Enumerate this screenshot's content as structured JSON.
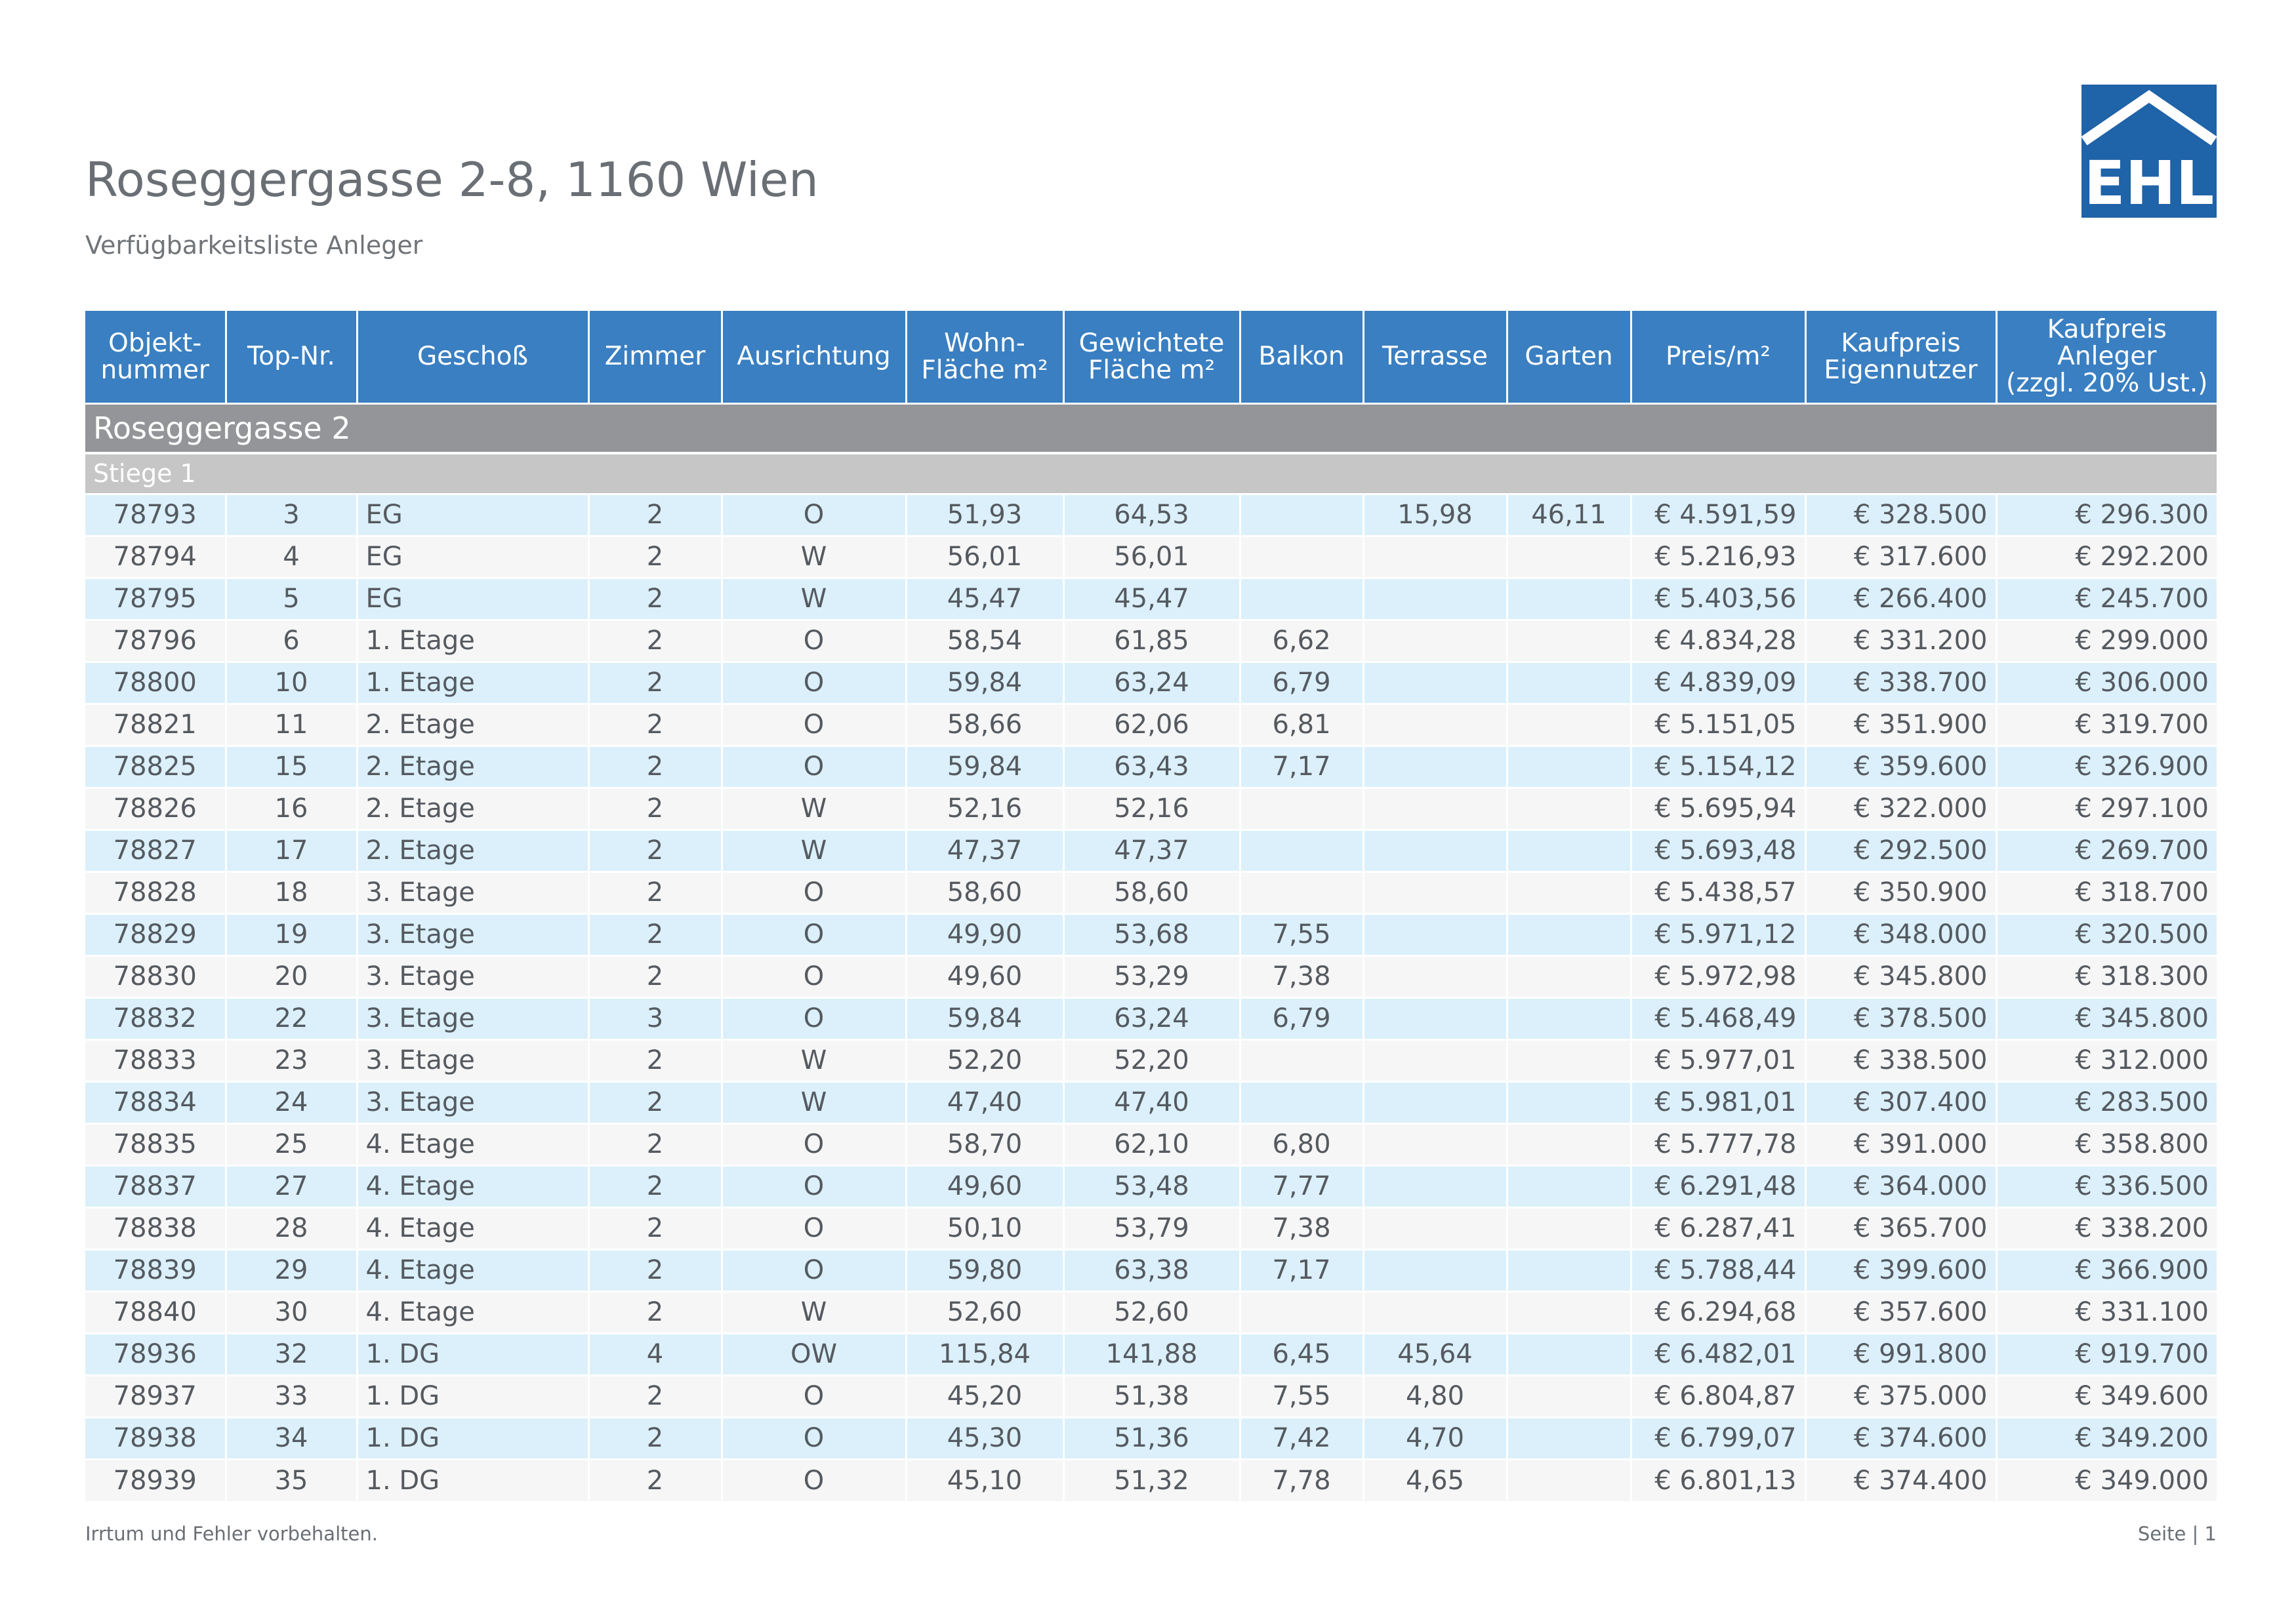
{
  "header": {
    "title": "Roseggergasse 2-8, 1160 Wien",
    "subtitle": "Verfügbarkeitsliste Anleger",
    "logo_text": "EHL",
    "brand_color": "#1f63a8"
  },
  "table": {
    "columns": [
      [
        "Objekt-",
        "nummer"
      ],
      [
        "Top-Nr."
      ],
      [
        "Geschoß"
      ],
      [
        "Zimmer"
      ],
      [
        "Ausrichtung"
      ],
      [
        "Wohn-",
        "Fläche m²"
      ],
      [
        "Gewichtete",
        "Fläche m²"
      ],
      [
        "Balkon"
      ],
      [
        "Terrasse"
      ],
      [
        "Garten"
      ],
      [
        "Preis/m²"
      ],
      [
        "Kaufpreis",
        "Eigennutzer"
      ],
      [
        "Kaufpreis",
        "Anleger",
        "(zzgl. 20% Ust.)"
      ]
    ],
    "group": "Roseggergasse 2",
    "subgroup": "Stiege 1",
    "rows": [
      [
        "78793",
        "3",
        "EG",
        "2",
        "O",
        "51,93",
        "64,53",
        "",
        "15,98",
        "46,11",
        "€ 4.591,59",
        "€ 328.500",
        "€ 296.300"
      ],
      [
        "78794",
        "4",
        "EG",
        "2",
        "W",
        "56,01",
        "56,01",
        "",
        "",
        "",
        "€ 5.216,93",
        "€ 317.600",
        "€ 292.200"
      ],
      [
        "78795",
        "5",
        "EG",
        "2",
        "W",
        "45,47",
        "45,47",
        "",
        "",
        "",
        "€ 5.403,56",
        "€ 266.400",
        "€ 245.700"
      ],
      [
        "78796",
        "6",
        "1. Etage",
        "2",
        "O",
        "58,54",
        "61,85",
        "6,62",
        "",
        "",
        "€ 4.834,28",
        "€ 331.200",
        "€ 299.000"
      ],
      [
        "78800",
        "10",
        "1. Etage",
        "2",
        "O",
        "59,84",
        "63,24",
        "6,79",
        "",
        "",
        "€ 4.839,09",
        "€ 338.700",
        "€ 306.000"
      ],
      [
        "78821",
        "11",
        "2. Etage",
        "2",
        "O",
        "58,66",
        "62,06",
        "6,81",
        "",
        "",
        "€ 5.151,05",
        "€ 351.900",
        "€ 319.700"
      ],
      [
        "78825",
        "15",
        "2. Etage",
        "2",
        "O",
        "59,84",
        "63,43",
        "7,17",
        "",
        "",
        "€ 5.154,12",
        "€ 359.600",
        "€ 326.900"
      ],
      [
        "78826",
        "16",
        "2. Etage",
        "2",
        "W",
        "52,16",
        "52,16",
        "",
        "",
        "",
        "€ 5.695,94",
        "€ 322.000",
        "€ 297.100"
      ],
      [
        "78827",
        "17",
        "2. Etage",
        "2",
        "W",
        "47,37",
        "47,37",
        "",
        "",
        "",
        "€ 5.693,48",
        "€ 292.500",
        "€ 269.700"
      ],
      [
        "78828",
        "18",
        "3. Etage",
        "2",
        "O",
        "58,60",
        "58,60",
        "",
        "",
        "",
        "€ 5.438,57",
        "€ 350.900",
        "€ 318.700"
      ],
      [
        "78829",
        "19",
        "3. Etage",
        "2",
        "O",
        "49,90",
        "53,68",
        "7,55",
        "",
        "",
        "€ 5.971,12",
        "€ 348.000",
        "€ 320.500"
      ],
      [
        "78830",
        "20",
        "3. Etage",
        "2",
        "O",
        "49,60",
        "53,29",
        "7,38",
        "",
        "",
        "€ 5.972,98",
        "€ 345.800",
        "€ 318.300"
      ],
      [
        "78832",
        "22",
        "3. Etage",
        "3",
        "O",
        "59,84",
        "63,24",
        "6,79",
        "",
        "",
        "€ 5.468,49",
        "€ 378.500",
        "€ 345.800"
      ],
      [
        "78833",
        "23",
        "3. Etage",
        "2",
        "W",
        "52,20",
        "52,20",
        "",
        "",
        "",
        "€ 5.977,01",
        "€ 338.500",
        "€ 312.000"
      ],
      [
        "78834",
        "24",
        "3. Etage",
        "2",
        "W",
        "47,40",
        "47,40",
        "",
        "",
        "",
        "€ 5.981,01",
        "€ 307.400",
        "€ 283.500"
      ],
      [
        "78835",
        "25",
        "4. Etage",
        "2",
        "O",
        "58,70",
        "62,10",
        "6,80",
        "",
        "",
        "€ 5.777,78",
        "€ 391.000",
        "€ 358.800"
      ],
      [
        "78837",
        "27",
        "4. Etage",
        "2",
        "O",
        "49,60",
        "53,48",
        "7,77",
        "",
        "",
        "€ 6.291,48",
        "€ 364.000",
        "€ 336.500"
      ],
      [
        "78838",
        "28",
        "4. Etage",
        "2",
        "O",
        "50,10",
        "53,79",
        "7,38",
        "",
        "",
        "€ 6.287,41",
        "€ 365.700",
        "€ 338.200"
      ],
      [
        "78839",
        "29",
        "4. Etage",
        "2",
        "O",
        "59,80",
        "63,38",
        "7,17",
        "",
        "",
        "€ 5.788,44",
        "€ 399.600",
        "€ 366.900"
      ],
      [
        "78840",
        "30",
        "4. Etage",
        "2",
        "W",
        "52,60",
        "52,60",
        "",
        "",
        "",
        "€ 6.294,68",
        "€ 357.600",
        "€ 331.100"
      ],
      [
        "78936",
        "32",
        "1. DG",
        "4",
        "OW",
        "115,84",
        "141,88",
        "6,45",
        "45,64",
        "",
        "€ 6.482,01",
        "€ 991.800",
        "€ 919.700"
      ],
      [
        "78937",
        "33",
        "1. DG",
        "2",
        "O",
        "45,20",
        "51,38",
        "7,55",
        "4,80",
        "",
        "€ 6.804,87",
        "€ 375.000",
        "€ 349.600"
      ],
      [
        "78938",
        "34",
        "1. DG",
        "2",
        "O",
        "45,30",
        "51,36",
        "7,42",
        "4,70",
        "",
        "€ 6.799,07",
        "€ 374.600",
        "€ 349.200"
      ],
      [
        "78939",
        "35",
        "1. DG",
        "2",
        "O",
        "45,10",
        "51,32",
        "7,78",
        "4,65",
        "",
        "€ 6.801,13",
        "€ 374.400",
        "€ 349.000"
      ]
    ]
  },
  "footer": {
    "disclaimer": "Irrtum und Fehler vorbehalten.",
    "page": "Seite | 1"
  }
}
